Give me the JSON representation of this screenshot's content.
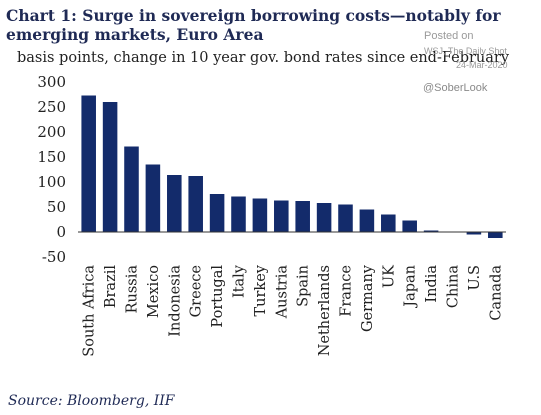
{
  "title": "Chart 1: Surge in sovereign borrowing costs—notably for emerging markets, Euro Area",
  "subtitle": "basis points, change in 10 year gov. bond rates since end-February",
  "watermark": {
    "posted": "Posted on",
    "source": "WSJ, The Daily Shot",
    "date": "24-Mar-2020",
    "handle": "@SoberLook"
  },
  "source": "Source: Bloomberg, IIF",
  "colors": {
    "bar": "#132b6b",
    "axis": "#333333"
  },
  "chart_data": {
    "type": "bar",
    "title": "Chart 1: Surge in sovereign borrowing costs—notably for emerging markets, Euro Area",
    "subtitle": "basis points, change in 10 year gov. bond rates since end-February",
    "ylabel": "",
    "xlabel": "",
    "ylim": [
      -50,
      300
    ],
    "yticks": [
      -50,
      0,
      50,
      100,
      150,
      200,
      250,
      300
    ],
    "grid": false,
    "categories": [
      "South Africa",
      "Brazil",
      "Russia",
      "Mexico",
      "Indonesia",
      "Greece",
      "Portugal",
      "Italy",
      "Turkey",
      "Austria",
      "Spain",
      "Netherlands",
      "France",
      "Germany",
      "UK",
      "Japan",
      "India",
      "China",
      "U.S",
      "Canada"
    ],
    "values": [
      273,
      260,
      171,
      135,
      114,
      112,
      76,
      71,
      67,
      63,
      62,
      58,
      55,
      45,
      35,
      23,
      3,
      1,
      -5,
      -12
    ]
  }
}
